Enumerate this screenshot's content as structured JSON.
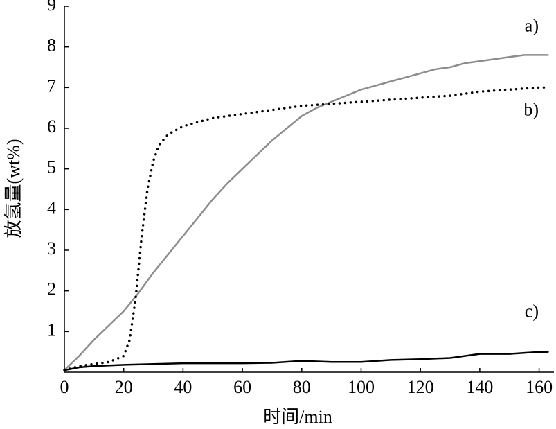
{
  "chart_data": {
    "type": "line",
    "xlabel": "时间/min",
    "ylabel": "放氢量(wt%)",
    "xlim": [
      0,
      165
    ],
    "ylim": [
      0,
      9
    ],
    "xticks": [
      0,
      20,
      40,
      60,
      80,
      100,
      120,
      140,
      160
    ],
    "yticks": [
      1,
      2,
      3,
      4,
      5,
      6,
      7,
      8,
      9
    ],
    "series": [
      {
        "name": "a)",
        "color": "#8c8c8c",
        "style": "solid",
        "x": [
          0,
          5,
          10,
          15,
          20,
          25,
          30,
          35,
          40,
          45,
          50,
          55,
          60,
          65,
          70,
          75,
          80,
          85,
          90,
          95,
          100,
          105,
          110,
          115,
          120,
          125,
          130,
          135,
          140,
          145,
          150,
          155,
          160,
          163
        ],
        "values": [
          0.05,
          0.4,
          0.8,
          1.15,
          1.5,
          1.95,
          2.45,
          2.9,
          3.35,
          3.8,
          4.25,
          4.65,
          5.0,
          5.35,
          5.7,
          6.0,
          6.3,
          6.5,
          6.65,
          6.8,
          6.95,
          7.05,
          7.15,
          7.25,
          7.35,
          7.45,
          7.5,
          7.6,
          7.65,
          7.7,
          7.75,
          7.8,
          7.8,
          7.8
        ]
      },
      {
        "name": "b)",
        "color": "#000000",
        "style": "dotted",
        "x": [
          0,
          5,
          10,
          15,
          20,
          22,
          24,
          26,
          28,
          30,
          32,
          35,
          40,
          45,
          50,
          60,
          70,
          80,
          90,
          100,
          110,
          120,
          130,
          140,
          150,
          160,
          163
        ],
        "values": [
          0.05,
          0.15,
          0.2,
          0.25,
          0.4,
          0.8,
          1.8,
          3.3,
          4.5,
          5.2,
          5.6,
          5.85,
          6.05,
          6.15,
          6.25,
          6.35,
          6.45,
          6.55,
          6.6,
          6.65,
          6.7,
          6.75,
          6.8,
          6.9,
          6.95,
          7.0,
          7.0
        ]
      },
      {
        "name": "c)",
        "color": "#000000",
        "style": "solid",
        "x": [
          0,
          5,
          10,
          20,
          30,
          40,
          50,
          60,
          70,
          80,
          90,
          100,
          110,
          120,
          130,
          140,
          150,
          160,
          163
        ],
        "values": [
          0.05,
          0.12,
          0.15,
          0.18,
          0.2,
          0.22,
          0.22,
          0.22,
          0.23,
          0.28,
          0.25,
          0.25,
          0.3,
          0.32,
          0.35,
          0.45,
          0.45,
          0.5,
          0.5
        ]
      }
    ]
  }
}
